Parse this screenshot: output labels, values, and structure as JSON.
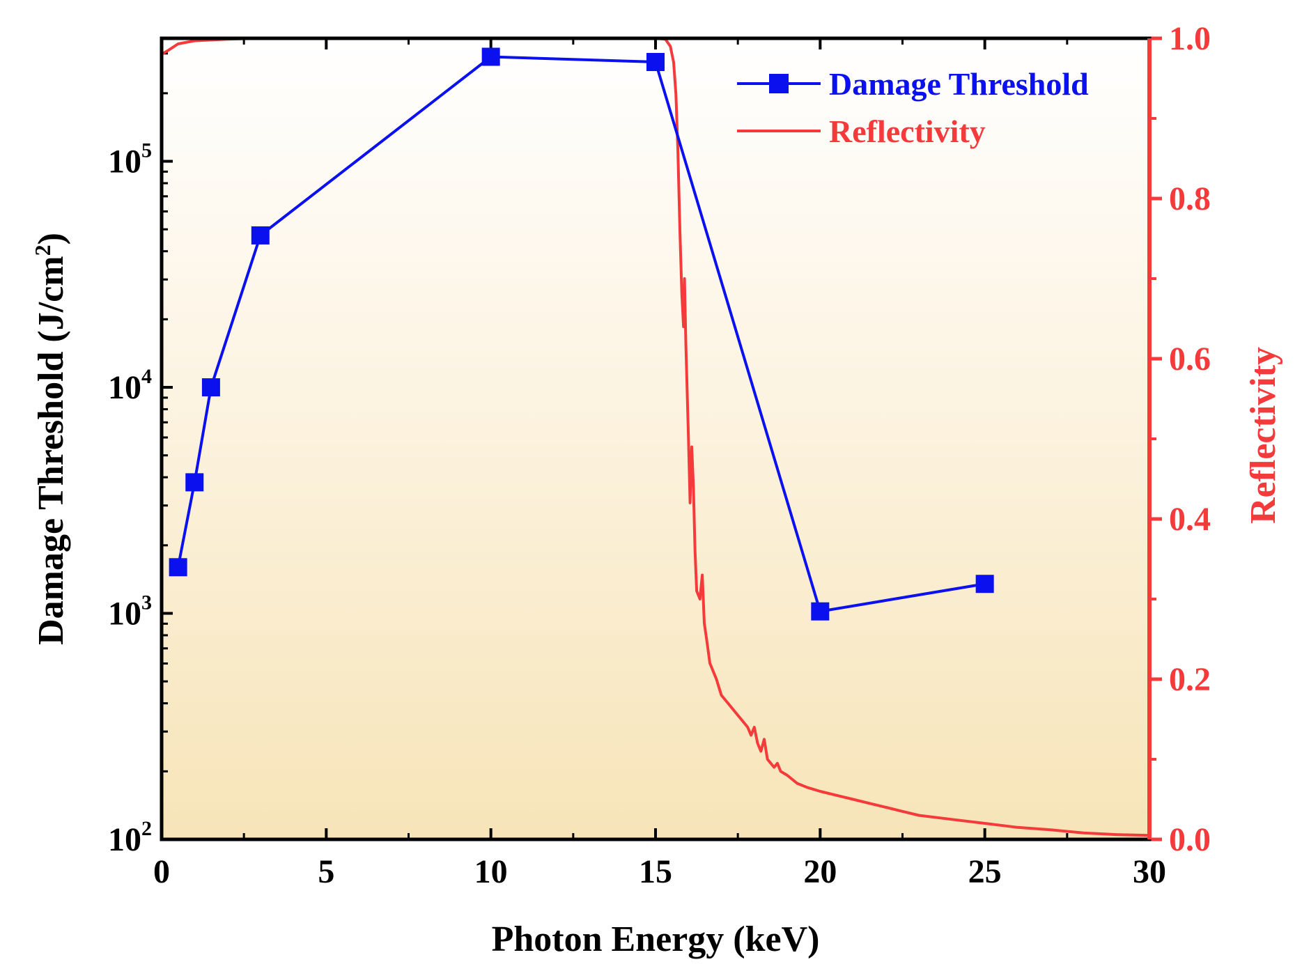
{
  "chart_data": {
    "type": "line",
    "title": "",
    "xlabel": "Photon Energy (keV)",
    "ylabel_left": "Damage Threshold (J/cm",
    "ylabel_left_sup": "2",
    "ylabel_left_close": ")",
    "ylabel_right": "Reflectivity",
    "xlim": [
      0,
      30
    ],
    "ylim_left": [
      100,
      350000
    ],
    "yscale_left": "log",
    "ylim_right": [
      0.0,
      1.0
    ],
    "x_ticks": [
      "0",
      "5",
      "10",
      "15",
      "20",
      "25",
      "30"
    ],
    "x_tick_values": [
      0,
      5,
      10,
      15,
      20,
      25,
      30
    ],
    "y_left_ticks": [
      {
        "base": "10",
        "exp": "2",
        "value": 100
      },
      {
        "base": "10",
        "exp": "3",
        "value": 1000
      },
      {
        "base": "10",
        "exp": "4",
        "value": 10000
      },
      {
        "base": "10",
        "exp": "5",
        "value": 100000
      }
    ],
    "y_right_ticks": [
      "0.0",
      "0.2",
      "0.4",
      "0.6",
      "0.8",
      "1.0"
    ],
    "y_right_tick_values": [
      0.0,
      0.2,
      0.4,
      0.6,
      0.8,
      1.0
    ],
    "legend_position": "top-right",
    "colors": {
      "damage": "#0a10ee",
      "reflectivity": "#f43a3a",
      "axis": "#000000",
      "background_top": "#ffffff",
      "background_bottom": "#f7e4b8"
    },
    "series": [
      {
        "name": "Damage Threshold",
        "axis": "left",
        "marker": "square",
        "x": [
          0.5,
          1.0,
          1.5,
          3.0,
          10.0,
          15.0,
          20.0,
          25.0
        ],
        "values": [
          1600,
          3800,
          10000,
          47000,
          290000,
          275000,
          1020,
          1350
        ]
      },
      {
        "name": "Reflectivity",
        "axis": "right",
        "marker": "none",
        "x": [
          0.0,
          0.2,
          0.5,
          1.0,
          2.0,
          3.0,
          5.0,
          10.0,
          15.0,
          15.3,
          15.45,
          15.55,
          15.62,
          15.68,
          15.74,
          15.8,
          15.85,
          15.88,
          15.92,
          15.96,
          16.0,
          16.05,
          16.1,
          16.15,
          16.2,
          16.25,
          16.35,
          16.42,
          16.48,
          16.55,
          16.65,
          16.75,
          16.85,
          17.0,
          17.2,
          17.4,
          17.6,
          17.8,
          17.9,
          18.0,
          18.1,
          18.2,
          18.3,
          18.4,
          18.6,
          18.7,
          18.8,
          19.0,
          19.3,
          19.6,
          20.0,
          20.5,
          21.0,
          21.5,
          22.0,
          22.5,
          23.0,
          24.0,
          25.0,
          26.0,
          27.0,
          28.0,
          29.0,
          30.0
        ],
        "values": [
          0.98,
          0.985,
          0.993,
          0.997,
          0.999,
          1.0,
          1.0,
          1.0,
          1.0,
          0.999,
          0.99,
          0.97,
          0.93,
          0.86,
          0.76,
          0.68,
          0.64,
          0.7,
          0.62,
          0.56,
          0.5,
          0.42,
          0.49,
          0.44,
          0.36,
          0.31,
          0.3,
          0.33,
          0.27,
          0.25,
          0.22,
          0.21,
          0.2,
          0.18,
          0.17,
          0.16,
          0.15,
          0.14,
          0.13,
          0.14,
          0.12,
          0.11,
          0.125,
          0.1,
          0.09,
          0.095,
          0.085,
          0.08,
          0.07,
          0.065,
          0.06,
          0.055,
          0.05,
          0.045,
          0.04,
          0.035,
          0.03,
          0.025,
          0.02,
          0.015,
          0.012,
          0.008,
          0.006,
          0.005
        ]
      }
    ]
  }
}
